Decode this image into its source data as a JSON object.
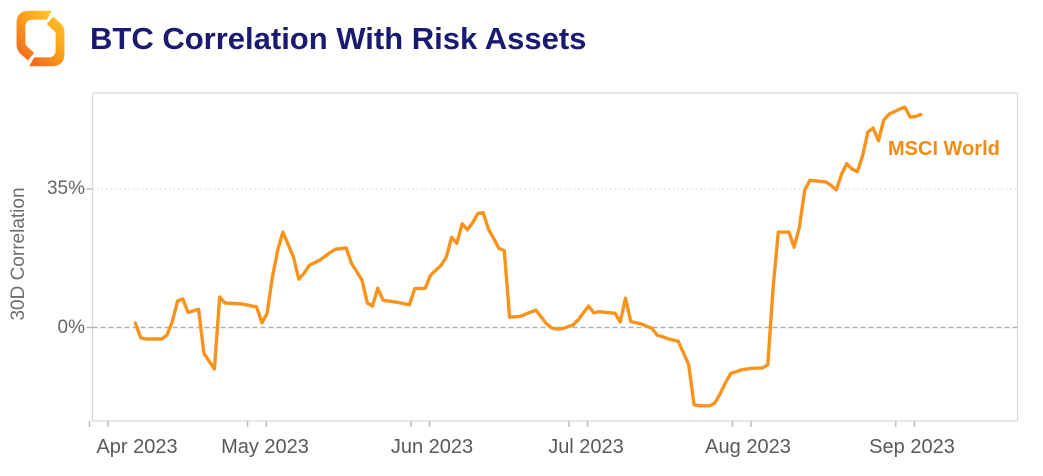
{
  "header": {
    "title": "BTC Correlation With Risk Assets",
    "logo": "amber-hexagon-logo"
  },
  "colors": {
    "line_orange": "#f7941d",
    "legend_orange": "#f28c11",
    "title_navy": "#1a1a72",
    "axis_text_gray": "#595959",
    "ytick_text_gray": "#666666",
    "plot_border_gray": "#d9d9d9",
    "zero_line_gray": "#b0b0b0",
    "gridline_gray": "#d6d6d6",
    "tick_mark_gray": "#b8b8b8",
    "logo_deep_orange": "#f26d1f",
    "logo_amber": "#ffc222"
  },
  "chart_data": {
    "type": "line",
    "title": "BTC Correlation With Risk Assets",
    "series_label": "MSCI World",
    "ylabel": "30D Correlation",
    "yticks": [
      {
        "label": "35%",
        "value": 35
      },
      {
        "label": "0%",
        "value": 0
      }
    ],
    "xticklabels": [
      "Apr 2023",
      "May 2023",
      "Jun 2023",
      "Jul 2023",
      "Aug 2023",
      "Sep 2023"
    ],
    "month_starts": [
      "2023-04-01",
      "2023-05-01",
      "2023-06-01",
      "2023-07-01",
      "2023-08-01",
      "2023-09-01"
    ],
    "ylim_pct": [
      -23.5,
      59
    ],
    "x_range": [
      "2023-04-01",
      "2023-09-22"
    ],
    "grid": "dotted gridline at 35%, dashed line at 0%",
    "legend_position": "inline upper-right",
    "unit": "percent correlation",
    "points": [
      [
        "2023-04-08",
        1.1
      ],
      [
        "2023-04-09",
        -2.6
      ],
      [
        "2023-04-10",
        -2.9
      ],
      [
        "2023-04-13",
        -2.9
      ],
      [
        "2023-04-14",
        -1.9
      ],
      [
        "2023-04-15",
        1.5
      ],
      [
        "2023-04-16",
        6.7
      ],
      [
        "2023-04-17",
        7.2
      ],
      [
        "2023-04-18",
        3.8
      ],
      [
        "2023-04-19",
        4.2
      ],
      [
        "2023-04-20",
        4.6
      ],
      [
        "2023-04-21",
        -6.5
      ],
      [
        "2023-04-23",
        -10.5
      ],
      [
        "2023-04-24",
        7.7
      ],
      [
        "2023-04-25",
        6.2
      ],
      [
        "2023-04-28",
        6.0
      ],
      [
        "2023-05-01",
        5.2
      ],
      [
        "2023-05-02",
        1.2
      ],
      [
        "2023-05-03",
        3.6
      ],
      [
        "2023-05-04",
        12.8
      ],
      [
        "2023-05-05",
        19.5
      ],
      [
        "2023-05-06",
        24.1
      ],
      [
        "2023-05-08",
        17.8
      ],
      [
        "2023-05-09",
        12.2
      ],
      [
        "2023-05-10",
        13.7
      ],
      [
        "2023-05-11",
        15.7
      ],
      [
        "2023-05-13",
        17.0
      ],
      [
        "2023-05-15",
        19.0
      ],
      [
        "2023-05-16",
        19.8
      ],
      [
        "2023-05-18",
        20.1
      ],
      [
        "2023-05-19",
        16.2
      ],
      [
        "2023-05-21",
        12.0
      ],
      [
        "2023-05-22",
        6.2
      ],
      [
        "2023-05-23",
        5.4
      ],
      [
        "2023-05-24",
        9.9
      ],
      [
        "2023-05-25",
        6.9
      ],
      [
        "2023-05-28",
        6.3
      ],
      [
        "2023-05-30",
        5.7
      ],
      [
        "2023-05-31",
        9.8
      ],
      [
        "2023-06-02",
        9.9
      ],
      [
        "2023-06-03",
        13.2
      ],
      [
        "2023-06-05",
        15.7
      ],
      [
        "2023-06-06",
        17.8
      ],
      [
        "2023-06-07",
        22.8
      ],
      [
        "2023-06-08",
        21.3
      ],
      [
        "2023-06-09",
        26.2
      ],
      [
        "2023-06-10",
        24.7
      ],
      [
        "2023-06-11",
        26.5
      ],
      [
        "2023-06-12",
        28.8
      ],
      [
        "2023-06-13",
        29.0
      ],
      [
        "2023-06-14",
        24.8
      ],
      [
        "2023-06-15",
        22.5
      ],
      [
        "2023-06-16",
        20.0
      ],
      [
        "2023-06-17",
        19.4
      ],
      [
        "2023-06-18",
        2.6
      ],
      [
        "2023-06-20",
        2.8
      ],
      [
        "2023-06-22",
        3.9
      ],
      [
        "2023-06-23",
        4.4
      ],
      [
        "2023-06-25",
        0.9
      ],
      [
        "2023-06-26",
        -0.1
      ],
      [
        "2023-06-27",
        -0.4
      ],
      [
        "2023-06-28",
        -0.3
      ],
      [
        "2023-06-30",
        0.6
      ],
      [
        "2023-07-01",
        1.9
      ],
      [
        "2023-07-02",
        3.7
      ],
      [
        "2023-07-03",
        5.4
      ],
      [
        "2023-07-04",
        3.7
      ],
      [
        "2023-07-05",
        4.0
      ],
      [
        "2023-07-08",
        3.6
      ],
      [
        "2023-07-09",
        1.4
      ],
      [
        "2023-07-10",
        7.4
      ],
      [
        "2023-07-11",
        1.5
      ],
      [
        "2023-07-13",
        0.9
      ],
      [
        "2023-07-15",
        -0.2
      ],
      [
        "2023-07-16",
        -1.9
      ],
      [
        "2023-07-17",
        -2.3
      ],
      [
        "2023-07-18",
        -2.8
      ],
      [
        "2023-07-20",
        -3.5
      ],
      [
        "2023-07-21",
        -6.4
      ],
      [
        "2023-07-22",
        -9.4
      ],
      [
        "2023-07-23",
        -19.5
      ],
      [
        "2023-07-24",
        -19.8
      ],
      [
        "2023-07-26",
        -19.8
      ],
      [
        "2023-07-27",
        -19.0
      ],
      [
        "2023-07-28",
        -16.6
      ],
      [
        "2023-07-29",
        -13.9
      ],
      [
        "2023-07-30",
        -11.6
      ],
      [
        "2023-07-31",
        -11.2
      ],
      [
        "2023-08-01",
        -10.7
      ],
      [
        "2023-08-03",
        -10.3
      ],
      [
        "2023-08-05",
        -10.2
      ],
      [
        "2023-08-06",
        -9.4
      ],
      [
        "2023-08-07",
        10.0
      ],
      [
        "2023-08-08",
        24.1
      ],
      [
        "2023-08-10",
        24.1
      ],
      [
        "2023-08-11",
        20.3
      ],
      [
        "2023-08-12",
        25.4
      ],
      [
        "2023-08-13",
        34.7
      ],
      [
        "2023-08-14",
        37.2
      ],
      [
        "2023-08-17",
        36.8
      ],
      [
        "2023-08-18",
        35.9
      ],
      [
        "2023-08-19",
        34.8
      ],
      [
        "2023-08-20",
        38.8
      ],
      [
        "2023-08-21",
        41.4
      ],
      [
        "2023-08-22",
        40.0
      ],
      [
        "2023-08-23",
        39.4
      ],
      [
        "2023-08-24",
        43.4
      ],
      [
        "2023-08-25",
        49.4
      ],
      [
        "2023-08-26",
        50.4
      ],
      [
        "2023-08-27",
        47.2
      ],
      [
        "2023-08-28",
        52.4
      ],
      [
        "2023-08-29",
        53.9
      ],
      [
        "2023-08-30",
        54.5
      ],
      [
        "2023-08-31",
        55.2
      ],
      [
        "2023-09-01",
        55.7
      ],
      [
        "2023-09-02",
        53.2
      ],
      [
        "2023-09-03",
        53.3
      ],
      [
        "2023-09-04",
        53.8
      ]
    ]
  }
}
